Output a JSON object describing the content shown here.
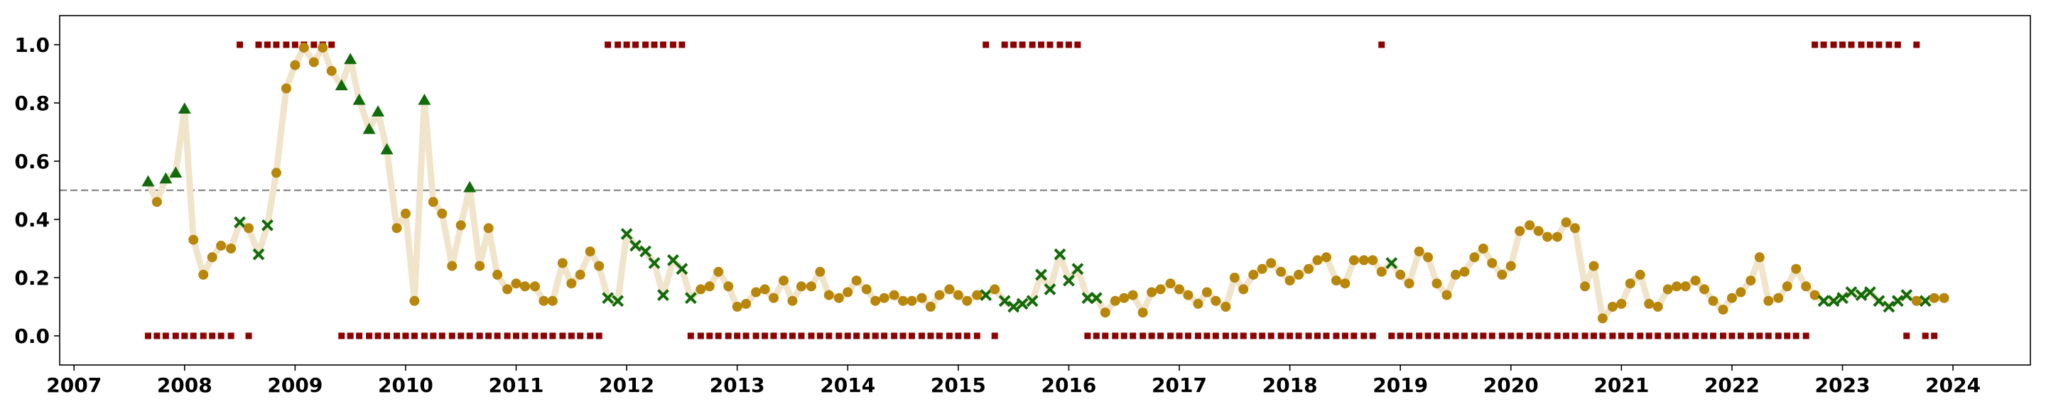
{
  "chart_data": {
    "type": "line",
    "x": [
      2007.67,
      2007.75,
      2007.83,
      2007.92,
      2008.0,
      2008.08,
      2008.17,
      2008.25,
      2008.33,
      2008.42,
      2008.5,
      2008.58,
      2008.67,
      2008.75,
      2008.83,
      2008.92,
      2009.0,
      2009.08,
      2009.17,
      2009.25,
      2009.33,
      2009.42,
      2009.5,
      2009.58,
      2009.67,
      2009.75,
      2009.83,
      2009.92,
      2010.0,
      2010.08,
      2010.17,
      2010.25,
      2010.33,
      2010.42,
      2010.5,
      2010.58,
      2010.67,
      2010.75,
      2010.83,
      2010.92,
      2011.0,
      2011.08,
      2011.17,
      2011.25,
      2011.33,
      2011.42,
      2011.5,
      2011.58,
      2011.67,
      2011.75,
      2011.83,
      2011.92,
      2012.0,
      2012.08,
      2012.17,
      2012.25,
      2012.33,
      2012.42,
      2012.5,
      2012.58,
      2012.67,
      2012.75,
      2012.83,
      2012.92,
      2013.0,
      2013.08,
      2013.17,
      2013.25,
      2013.33,
      2013.42,
      2013.5,
      2013.58,
      2013.67,
      2013.75,
      2013.83,
      2013.92,
      2014.0,
      2014.08,
      2014.17,
      2014.25,
      2014.33,
      2014.42,
      2014.5,
      2014.58,
      2014.67,
      2014.75,
      2014.83,
      2014.92,
      2015.0,
      2015.08,
      2015.17,
      2015.25,
      2015.33,
      2015.42,
      2015.5,
      2015.58,
      2015.67,
      2015.75,
      2015.83,
      2015.92,
      2016.0,
      2016.08,
      2016.17,
      2016.25,
      2016.33,
      2016.42,
      2016.5,
      2016.58,
      2016.67,
      2016.75,
      2016.83,
      2016.92,
      2017.0,
      2017.08,
      2017.17,
      2017.25,
      2017.33,
      2017.42,
      2017.5,
      2017.58,
      2017.67,
      2017.75,
      2017.83,
      2017.92,
      2018.0,
      2018.08,
      2018.17,
      2018.25,
      2018.33,
      2018.42,
      2018.5,
      2018.58,
      2018.67,
      2018.75,
      2018.83,
      2018.92,
      2019.0,
      2019.08,
      2019.17,
      2019.25,
      2019.33,
      2019.42,
      2019.5,
      2019.58,
      2019.67,
      2019.75,
      2019.83,
      2019.92,
      2020.0,
      2020.08,
      2020.17,
      2020.25,
      2020.33,
      2020.42,
      2020.5,
      2020.58,
      2020.67,
      2020.75,
      2020.83,
      2020.92,
      2021.0,
      2021.08,
      2021.17,
      2021.25,
      2021.33,
      2021.42,
      2021.5,
      2021.58,
      2021.67,
      2021.75,
      2021.83,
      2021.92,
      2022.0,
      2022.08,
      2022.17,
      2022.25,
      2022.33,
      2022.42,
      2022.5,
      2022.58,
      2022.67,
      2022.75,
      2022.83,
      2022.92,
      2023.0,
      2023.08,
      2023.17,
      2023.25,
      2023.33,
      2023.42,
      2023.5,
      2023.58,
      2023.67,
      2023.75,
      2023.83,
      2023.92
    ],
    "values": [
      0.53,
      0.46,
      0.54,
      0.56,
      0.78,
      0.33,
      0.21,
      0.27,
      0.31,
      0.3,
      0.39,
      0.37,
      0.28,
      0.38,
      0.56,
      0.85,
      0.93,
      0.99,
      0.94,
      0.99,
      0.91,
      0.86,
      0.95,
      0.81,
      0.71,
      0.77,
      0.64,
      0.37,
      0.42,
      0.12,
      0.81,
      0.46,
      0.42,
      0.24,
      0.38,
      0.51,
      0.24,
      0.37,
      0.21,
      0.16,
      0.18,
      0.17,
      0.17,
      0.12,
      0.12,
      0.25,
      0.18,
      0.21,
      0.29,
      0.24,
      0.13,
      0.12,
      0.35,
      0.31,
      0.29,
      0.25,
      0.14,
      0.26,
      0.23,
      0.13,
      0.16,
      0.17,
      0.22,
      0.17,
      0.1,
      0.11,
      0.15,
      0.16,
      0.13,
      0.19,
      0.12,
      0.17,
      0.17,
      0.22,
      0.14,
      0.13,
      0.15,
      0.19,
      0.16,
      0.12,
      0.13,
      0.14,
      0.12,
      0.12,
      0.13,
      0.1,
      0.14,
      0.16,
      0.14,
      0.12,
      0.14,
      0.14,
      0.16,
      0.12,
      0.1,
      0.11,
      0.12,
      0.21,
      0.16,
      0.28,
      0.19,
      0.23,
      0.13,
      0.13,
      0.08,
      0.12,
      0.13,
      0.14,
      0.08,
      0.15,
      0.16,
      0.18,
      0.16,
      0.14,
      0.11,
      0.15,
      0.12,
      0.1,
      0.2,
      0.16,
      0.21,
      0.23,
      0.25,
      0.22,
      0.19,
      0.21,
      0.23,
      0.26,
      0.27,
      0.19,
      0.18,
      0.26,
      0.26,
      0.26,
      0.22,
      0.25,
      0.21,
      0.18,
      0.29,
      0.27,
      0.18,
      0.14,
      0.21,
      0.22,
      0.27,
      0.3,
      0.25,
      0.21,
      0.24,
      0.36,
      0.38,
      0.36,
      0.34,
      0.34,
      0.39,
      0.37,
      0.17,
      0.24,
      0.06,
      0.1,
      0.11,
      0.18,
      0.21,
      0.11,
      0.1,
      0.16,
      0.17,
      0.17,
      0.19,
      0.16,
      0.12,
      0.09,
      0.13,
      0.15,
      0.19,
      0.27,
      0.12,
      0.13,
      0.17,
      0.23,
      0.17,
      0.14,
      0.12,
      0.12,
      0.13,
      0.15,
      0.14,
      0.15,
      0.12,
      0.1,
      0.12,
      0.14,
      0.12,
      0.12,
      0.13,
      0.13
    ],
    "markers": [
      "^",
      "o",
      "^",
      "^",
      "^",
      "o",
      "o",
      "o",
      "o",
      "o",
      "x",
      "o",
      "x",
      "x",
      "o",
      "o",
      "o",
      "o",
      "o",
      "o",
      "o",
      "^",
      "^",
      "^",
      "^",
      "^",
      "^",
      "o",
      "o",
      "o",
      "^",
      "o",
      "o",
      "o",
      "o",
      "^",
      "o",
      "o",
      "o",
      "o",
      "o",
      "o",
      "o",
      "o",
      "o",
      "o",
      "o",
      "o",
      "o",
      "o",
      "x",
      "x",
      "x",
      "x",
      "x",
      "x",
      "x",
      "x",
      "x",
      "x",
      "o",
      "o",
      "o",
      "o",
      "o",
      "o",
      "o",
      "o",
      "o",
      "o",
      "o",
      "o",
      "o",
      "o",
      "o",
      "o",
      "o",
      "o",
      "o",
      "o",
      "o",
      "o",
      "o",
      "o",
      "o",
      "o",
      "o",
      "o",
      "o",
      "o",
      "o",
      "x",
      "o",
      "x",
      "x",
      "x",
      "x",
      "x",
      "x",
      "x",
      "x",
      "x",
      "x",
      "x",
      "o",
      "o",
      "o",
      "o",
      "o",
      "o",
      "o",
      "o",
      "o",
      "o",
      "o",
      "o",
      "o",
      "o",
      "o",
      "o",
      "o",
      "o",
      "o",
      "o",
      "o",
      "o",
      "o",
      "o",
      "o",
      "o",
      "o",
      "o",
      "o",
      "o",
      "o",
      "x",
      "o",
      "o",
      "o",
      "o",
      "o",
      "o",
      "o",
      "o",
      "o",
      "o",
      "o",
      "o",
      "o",
      "o",
      "o",
      "o",
      "o",
      "o",
      "o",
      "o",
      "o",
      "o",
      "o",
      "o",
      "o",
      "o",
      "o",
      "o",
      "o",
      "o",
      "o",
      "o",
      "o",
      "o",
      "o",
      "o",
      "o",
      "o",
      "o",
      "o",
      "o",
      "o",
      "o",
      "o",
      "o",
      "o",
      "x",
      "x",
      "x",
      "x",
      "x",
      "x",
      "x",
      "x",
      "x",
      "x",
      "o",
      "x",
      "o",
      "o"
    ],
    "signal": [
      0,
      0,
      0,
      0,
      0,
      0,
      0,
      0,
      0,
      0,
      1,
      0,
      1,
      1,
      1,
      1,
      1,
      1,
      1,
      1,
      1,
      0,
      0,
      0,
      0,
      0,
      0,
      0,
      0,
      0,
      0,
      0,
      0,
      0,
      0,
      0,
      0,
      0,
      0,
      0,
      0,
      0,
      0,
      0,
      0,
      0,
      0,
      0,
      0,
      0,
      1,
      1,
      1,
      1,
      1,
      1,
      1,
      1,
      1,
      0,
      0,
      0,
      0,
      0,
      0,
      0,
      0,
      0,
      0,
      0,
      0,
      0,
      0,
      0,
      0,
      0,
      0,
      0,
      0,
      0,
      0,
      0,
      0,
      0,
      0,
      0,
      0,
      0,
      0,
      0,
      0,
      1,
      0,
      1,
      1,
      1,
      1,
      1,
      1,
      1,
      1,
      1,
      0,
      0,
      0,
      0,
      0,
      0,
      0,
      0,
      0,
      0,
      0,
      0,
      0,
      0,
      0,
      0,
      0,
      0,
      0,
      0,
      0,
      0,
      0,
      0,
      0,
      0,
      0,
      0,
      0,
      0,
      0,
      0,
      1,
      0,
      0,
      0,
      0,
      0,
      0,
      0,
      0,
      0,
      0,
      0,
      0,
      0,
      0,
      0,
      0,
      0,
      0,
      0,
      0,
      0,
      0,
      0,
      0,
      0,
      0,
      0,
      0,
      0,
      0,
      0,
      0,
      0,
      0,
      0,
      0,
      0,
      0,
      0,
      0,
      0,
      0,
      0,
      0,
      0,
      0,
      1,
      1,
      1,
      1,
      1,
      1,
      1,
      1,
      1,
      1,
      0,
      1,
      0,
      0,
      null
    ],
    "line_color": "#f0e4cb",
    "marker_colors": {
      "o": "#b8860b",
      "^": "#126b0a",
      "x": "#126b0a"
    },
    "signal_color": "#8b0000",
    "hline": 0.5,
    "xlim": [
      2006.87,
      2024.7
    ],
    "ylim": [
      -0.1,
      1.1
    ],
    "xticks": [
      2007,
      2008,
      2009,
      2010,
      2011,
      2012,
      2013,
      2014,
      2015,
      2016,
      2017,
      2018,
      2019,
      2020,
      2021,
      2022,
      2023,
      2024
    ],
    "yticks": [
      {
        "value": 0,
        "label": "0.0"
      },
      0.2,
      0.4,
      0.6,
      0.8,
      {
        "value": 1,
        "label": "1.0"
      }
    ]
  }
}
